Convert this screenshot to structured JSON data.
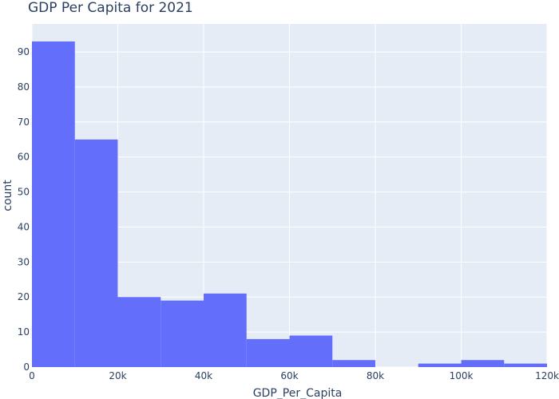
{
  "chart_data": {
    "type": "bar",
    "title": "GDP Per Capita for 2021",
    "xlabel": "GDP_Per_Capita",
    "ylabel": "count",
    "bin_size": 10000,
    "bins": [
      {
        "x0": 0,
        "x1": 10000,
        "count": 93
      },
      {
        "x0": 10000,
        "x1": 20000,
        "count": 65
      },
      {
        "x0": 20000,
        "x1": 30000,
        "count": 20
      },
      {
        "x0": 30000,
        "x1": 40000,
        "count": 19
      },
      {
        "x0": 40000,
        "x1": 50000,
        "count": 21
      },
      {
        "x0": 50000,
        "x1": 60000,
        "count": 8
      },
      {
        "x0": 60000,
        "x1": 70000,
        "count": 9
      },
      {
        "x0": 70000,
        "x1": 80000,
        "count": 2
      },
      {
        "x0": 80000,
        "x1": 90000,
        "count": 0
      },
      {
        "x0": 90000,
        "x1": 100000,
        "count": 1
      },
      {
        "x0": 100000,
        "x1": 110000,
        "count": 2
      },
      {
        "x0": 110000,
        "x1": 120000,
        "count": 1
      }
    ],
    "xlim": [
      0,
      120000
    ],
    "ylim": [
      0,
      98
    ],
    "x_ticks": [
      0,
      20000,
      40000,
      60000,
      80000,
      100000,
      120000
    ],
    "x_tick_labels": [
      "0",
      "20k",
      "40k",
      "60k",
      "80k",
      "100k",
      "120k"
    ],
    "y_ticks": [
      0,
      10,
      20,
      30,
      40,
      50,
      60,
      70,
      80,
      90
    ],
    "y_tick_labels": [
      "0",
      "10",
      "20",
      "30",
      "40",
      "50",
      "60",
      "70",
      "80",
      "90"
    ],
    "grid": true,
    "bar_color": "#636efa",
    "plot_background": "#e5ecf6",
    "grid_color": "#ffffff",
    "text_color": "#2a3f5f"
  }
}
